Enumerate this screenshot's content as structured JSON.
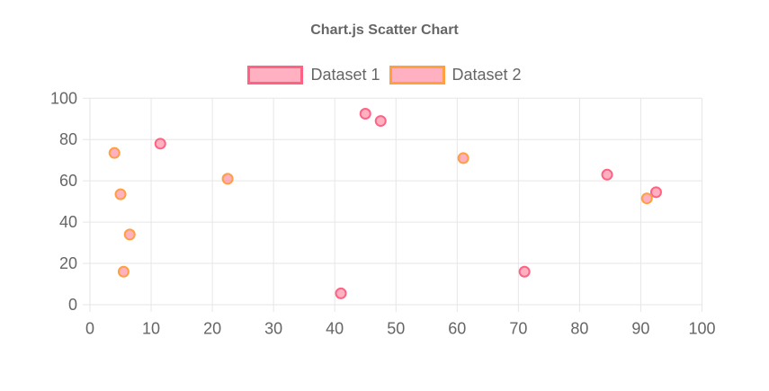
{
  "chart_data": {
    "type": "scatter",
    "title": "Chart.js Scatter Chart",
    "xlabel": "",
    "ylabel": "",
    "xlim": [
      0,
      100
    ],
    "ylim": [
      0,
      100
    ],
    "x_ticks": [
      0,
      10,
      20,
      30,
      40,
      50,
      60,
      70,
      80,
      90,
      100
    ],
    "y_ticks": [
      0,
      20,
      40,
      60,
      80,
      100
    ],
    "grid": true,
    "legend_position": "top",
    "text_color": "#666666",
    "grid_color": "#e6e6e6",
    "series": [
      {
        "name": "Dataset 1",
        "border_color": "#ff6384",
        "fill_color": "rgba(255,99,132,0.5)",
        "points": [
          {
            "x": 11.5,
            "y": 78
          },
          {
            "x": 41,
            "y": 5.5
          },
          {
            "x": 45,
            "y": 92.5
          },
          {
            "x": 47.5,
            "y": 89
          },
          {
            "x": 71,
            "y": 16
          },
          {
            "x": 84.5,
            "y": 63
          },
          {
            "x": 92.5,
            "y": 54.5
          }
        ]
      },
      {
        "name": "Dataset 2",
        "border_color": "#ff9f40",
        "fill_color": "rgba(255,99,132,0.5)",
        "points": [
          {
            "x": 4,
            "y": 73.5
          },
          {
            "x": 5,
            "y": 53.5
          },
          {
            "x": 5.5,
            "y": 16
          },
          {
            "x": 6.5,
            "y": 34
          },
          {
            "x": 22.5,
            "y": 61
          },
          {
            "x": 61,
            "y": 71
          },
          {
            "x": 91,
            "y": 51.5
          }
        ]
      }
    ]
  }
}
